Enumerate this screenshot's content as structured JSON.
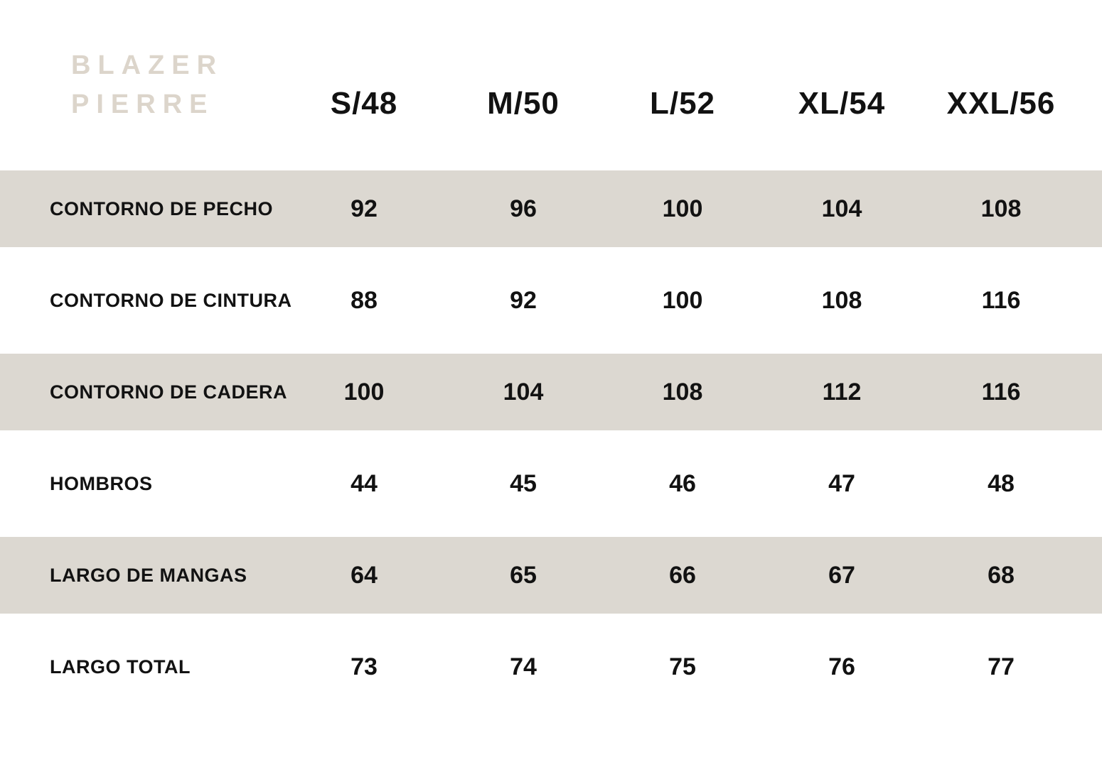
{
  "colors": {
    "background": "#ffffff",
    "band": "#dcd8d1",
    "title": "#dcd5cb",
    "text": "#121212"
  },
  "title": {
    "line1": "BLAZER",
    "line2": "PIERRE"
  },
  "chart_data": {
    "type": "table",
    "title": "BLAZER PIERRE",
    "columns": [
      "S/48",
      "M/50",
      "L/52",
      "XL/54",
      "XXL/56"
    ],
    "rows": [
      {
        "label": "CONTORNO DE PECHO",
        "values": [
          92,
          96,
          100,
          104,
          108
        ],
        "shaded": true
      },
      {
        "label": "CONTORNO DE CINTURA",
        "values": [
          88,
          92,
          100,
          108,
          116
        ],
        "shaded": false
      },
      {
        "label": "CONTORNO DE CADERA",
        "values": [
          100,
          104,
          108,
          112,
          116
        ],
        "shaded": true
      },
      {
        "label": "HOMBROS",
        "values": [
          44,
          45,
          46,
          47,
          48
        ],
        "shaded": false
      },
      {
        "label": "LARGO DE MANGAS",
        "values": [
          64,
          65,
          66,
          67,
          68
        ],
        "shaded": true
      },
      {
        "label": "LARGO TOTAL",
        "values": [
          73,
          74,
          75,
          76,
          77
        ],
        "shaded": false
      }
    ],
    "layout": {
      "shaded_row_color": "#dcd8d1",
      "grid_lines": false,
      "units_shown": false
    }
  }
}
